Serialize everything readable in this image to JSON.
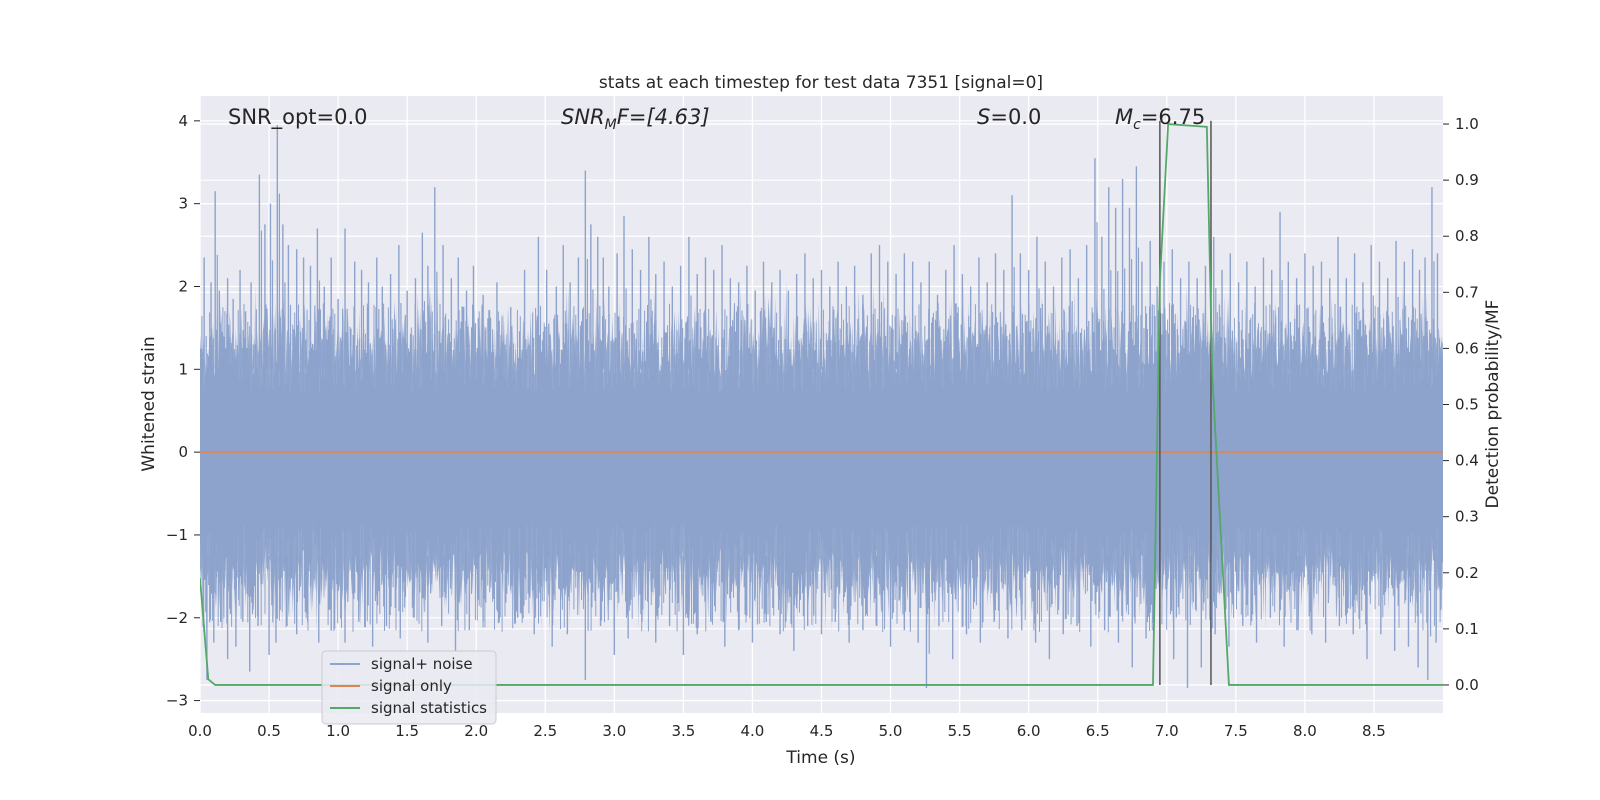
{
  "chart_data": {
    "type": "line",
    "title": "stats at each timestep for test data 7351 [signal=0]",
    "xlabel": "Time (s)",
    "ylabel": "Whitened strain",
    "y2label": "Detection probability/MF",
    "xlim": [
      0.0,
      9.0
    ],
    "ylim": [
      -3.15,
      4.3
    ],
    "y2lim": [
      -0.05,
      1.05
    ],
    "xticks": [
      "0.0",
      "0.5",
      "1.0",
      "1.5",
      "2.0",
      "2.5",
      "3.0",
      "3.5",
      "4.0",
      "4.5",
      "5.0",
      "5.5",
      "6.0",
      "6.5",
      "7.0",
      "7.5",
      "8.0",
      "8.5"
    ],
    "yticks": [
      "−3",
      "−2",
      "−1",
      "0",
      "1",
      "2",
      "3",
      "4"
    ],
    "y2ticks": [
      "0.0",
      "0.1",
      "0.2",
      "0.3",
      "0.4",
      "0.5",
      "0.6",
      "0.7",
      "0.8",
      "0.9",
      "1.0"
    ],
    "grid": true,
    "legend_position": "lower-left",
    "annotations": {
      "snr_opt": "SNR_opt=0.0",
      "snr_mf_main": "SNR",
      "snr_mf_sub": "M",
      "snr_mf_rest": "F=[4.63]",
      "s_italic": "S",
      "s_rest": "=0.0",
      "mc_main": "M",
      "mc_sub": "c",
      "mc_rest": "=6.75"
    },
    "series": [
      {
        "name": "signal+ noise",
        "color": "#8da3cc",
        "description_values": "whitened noise strain, approximately Gaussian",
        "envelope": {
          "typical_high": 1.2,
          "typical_low": -1.45,
          "max": 3.95,
          "min": -2.85
        },
        "spikes": [
          [
            0.03,
            2.35
          ],
          [
            0.08,
            2.05
          ],
          [
            0.11,
            3.15
          ],
          [
            0.14,
            1.95
          ],
          [
            0.2,
            2.1
          ],
          [
            0.24,
            1.85
          ],
          [
            0.29,
            2.2
          ],
          [
            0.33,
            1.7
          ],
          [
            0.37,
            2.05
          ],
          [
            0.43,
            3.35
          ],
          [
            0.47,
            2.75
          ],
          [
            0.51,
            3.0
          ],
          [
            0.56,
            3.95
          ],
          [
            0.6,
            2.75
          ],
          [
            0.64,
            2.5
          ],
          [
            0.7,
            2.45
          ],
          [
            0.75,
            2.35
          ],
          [
            0.8,
            2.25
          ],
          [
            0.85,
            2.7
          ],
          [
            0.9,
            2.0
          ],
          [
            0.95,
            2.35
          ],
          [
            1.0,
            1.85
          ],
          [
            1.05,
            2.7
          ],
          [
            1.12,
            2.3
          ],
          [
            1.17,
            2.2
          ],
          [
            1.22,
            2.05
          ],
          [
            1.28,
            2.35
          ],
          [
            1.32,
            2.0
          ],
          [
            1.38,
            2.15
          ],
          [
            1.44,
            2.5
          ],
          [
            1.5,
            1.95
          ],
          [
            1.56,
            2.1
          ],
          [
            1.61,
            2.65
          ],
          [
            1.65,
            2.25
          ],
          [
            1.7,
            3.2
          ],
          [
            1.76,
            2.5
          ],
          [
            1.82,
            2.1
          ],
          [
            1.87,
            2.35
          ],
          [
            1.93,
            1.95
          ],
          [
            1.98,
            2.25
          ],
          [
            2.05,
            1.9
          ],
          [
            2.15,
            2.05
          ],
          [
            2.25,
            1.75
          ],
          [
            2.35,
            2.2
          ],
          [
            2.45,
            2.6
          ],
          [
            2.51,
            2.2
          ],
          [
            2.58,
            2.0
          ],
          [
            2.63,
            2.5
          ],
          [
            2.68,
            2.05
          ],
          [
            2.74,
            2.35
          ],
          [
            2.79,
            3.4
          ],
          [
            2.83,
            2.75
          ],
          [
            2.88,
            2.6
          ],
          [
            2.92,
            2.35
          ],
          [
            2.96,
            2.0
          ],
          [
            3.02,
            2.4
          ],
          [
            3.07,
            2.85
          ],
          [
            3.13,
            2.45
          ],
          [
            3.19,
            2.2
          ],
          [
            3.25,
            2.6
          ],
          [
            3.3,
            2.15
          ],
          [
            3.36,
            2.3
          ],
          [
            3.42,
            2.0
          ],
          [
            3.48,
            2.25
          ],
          [
            3.54,
            2.6
          ],
          [
            3.6,
            2.15
          ],
          [
            3.66,
            2.35
          ],
          [
            3.72,
            2.2
          ],
          [
            3.78,
            2.5
          ],
          [
            3.84,
            2.1
          ],
          [
            3.9,
            2.05
          ],
          [
            3.96,
            2.25
          ],
          [
            4.02,
            1.95
          ],
          [
            4.08,
            2.3
          ],
          [
            4.14,
            2.05
          ],
          [
            4.2,
            2.2
          ],
          [
            4.26,
            1.95
          ],
          [
            4.32,
            2.15
          ],
          [
            4.38,
            2.4
          ],
          [
            4.44,
            2.1
          ],
          [
            4.5,
            2.2
          ],
          [
            4.56,
            2.0
          ],
          [
            4.62,
            2.3
          ],
          [
            4.68,
            2.0
          ],
          [
            4.74,
            2.25
          ],
          [
            4.8,
            1.9
          ],
          [
            4.86,
            2.4
          ],
          [
            4.92,
            2.5
          ],
          [
            4.98,
            2.3
          ],
          [
            5.04,
            2.15
          ],
          [
            5.1,
            2.4
          ],
          [
            5.16,
            2.3
          ],
          [
            5.22,
            2.05
          ],
          [
            5.28,
            2.3
          ],
          [
            5.34,
            1.9
          ],
          [
            5.4,
            2.2
          ],
          [
            5.46,
            2.5
          ],
          [
            5.52,
            2.15
          ],
          [
            5.58,
            2.0
          ],
          [
            5.64,
            2.35
          ],
          [
            5.7,
            2.05
          ],
          [
            5.76,
            2.4
          ],
          [
            5.82,
            2.2
          ],
          [
            5.88,
            3.1
          ],
          [
            5.94,
            2.4
          ],
          [
            6.0,
            2.2
          ],
          [
            6.06,
            2.6
          ],
          [
            6.12,
            2.3
          ],
          [
            6.18,
            2.0
          ],
          [
            6.24,
            2.35
          ],
          [
            6.3,
            2.45
          ],
          [
            6.36,
            2.1
          ],
          [
            6.42,
            2.5
          ],
          [
            6.48,
            3.55
          ],
          [
            6.53,
            2.6
          ],
          [
            6.58,
            3.2
          ],
          [
            6.63,
            2.95
          ],
          [
            6.68,
            3.3
          ],
          [
            6.73,
            2.95
          ],
          [
            6.78,
            3.45
          ],
          [
            6.82,
            2.3
          ],
          [
            6.88,
            2.55
          ],
          [
            6.93,
            2.0
          ],
          [
            6.98,
            2.3
          ],
          [
            7.04,
            2.45
          ],
          [
            7.1,
            2.1
          ],
          [
            7.16,
            2.3
          ],
          [
            7.22,
            2.1
          ],
          [
            7.28,
            2.25
          ],
          [
            7.34,
            2.6
          ],
          [
            7.4,
            2.2
          ],
          [
            7.46,
            2.4
          ],
          [
            7.52,
            2.05
          ],
          [
            7.58,
            2.3
          ],
          [
            7.64,
            2.0
          ],
          [
            7.7,
            2.35
          ],
          [
            7.76,
            2.2
          ],
          [
            7.82,
            2.9
          ],
          [
            7.88,
            2.3
          ],
          [
            7.94,
            2.1
          ],
          [
            8.0,
            2.4
          ],
          [
            8.06,
            2.25
          ],
          [
            8.12,
            2.3
          ],
          [
            8.18,
            2.1
          ],
          [
            8.24,
            2.6
          ],
          [
            8.3,
            2.1
          ],
          [
            8.36,
            2.4
          ],
          [
            8.42,
            2.05
          ],
          [
            8.48,
            2.5
          ],
          [
            8.54,
            2.3
          ],
          [
            8.6,
            2.1
          ],
          [
            8.66,
            2.55
          ],
          [
            8.72,
            2.3
          ],
          [
            8.78,
            2.45
          ],
          [
            8.83,
            2.2
          ],
          [
            8.87,
            2.35
          ],
          [
            8.92,
            3.2
          ],
          [
            8.96,
            2.4
          ]
        ],
        "dips": [
          [
            0.05,
            -2.75
          ],
          [
            0.1,
            -2.3
          ],
          [
            0.15,
            -2.05
          ],
          [
            0.2,
            -2.5
          ],
          [
            0.26,
            -2.35
          ],
          [
            0.31,
            -2.05
          ],
          [
            0.36,
            -2.65
          ],
          [
            0.42,
            -2.1
          ],
          [
            0.5,
            -2.45
          ],
          [
            0.55,
            -2.3
          ],
          [
            0.63,
            -2.1
          ],
          [
            0.7,
            -2.2
          ],
          [
            0.78,
            -2.05
          ],
          [
            0.86,
            -2.3
          ],
          [
            0.95,
            -2.15
          ],
          [
            1.05,
            -2.3
          ],
          [
            1.15,
            -2.05
          ],
          [
            1.25,
            -2.35
          ],
          [
            1.35,
            -2.1
          ],
          [
            1.45,
            -2.25
          ],
          [
            1.55,
            -2.0
          ],
          [
            1.65,
            -2.3
          ],
          [
            1.75,
            -2.1
          ],
          [
            1.85,
            -2.4
          ],
          [
            1.95,
            -2.15
          ],
          [
            2.05,
            -2.05
          ],
          [
            2.15,
            -1.9
          ],
          [
            2.3,
            -2.0
          ],
          [
            2.42,
            -2.2
          ],
          [
            2.55,
            -2.35
          ],
          [
            2.66,
            -2.2
          ],
          [
            2.79,
            -2.75
          ],
          [
            2.9,
            -2.1
          ],
          [
            3.0,
            -2.45
          ],
          [
            3.1,
            -2.25
          ],
          [
            3.2,
            -2.05
          ],
          [
            3.3,
            -2.3
          ],
          [
            3.4,
            -2.1
          ],
          [
            3.5,
            -2.45
          ],
          [
            3.6,
            -2.2
          ],
          [
            3.7,
            -2.05
          ],
          [
            3.8,
            -2.35
          ],
          [
            3.9,
            -2.15
          ],
          [
            4.0,
            -2.3
          ],
          [
            4.1,
            -2.05
          ],
          [
            4.2,
            -2.2
          ],
          [
            4.3,
            -2.4
          ],
          [
            4.4,
            -2.1
          ],
          [
            4.5,
            -2.2
          ],
          [
            4.6,
            -2.05
          ],
          [
            4.7,
            -2.3
          ],
          [
            4.8,
            -2.15
          ],
          [
            4.9,
            -2.1
          ],
          [
            5.0,
            -2.35
          ],
          [
            5.1,
            -2.15
          ],
          [
            5.2,
            -2.3
          ],
          [
            5.26,
            -2.85
          ],
          [
            5.35,
            -2.1
          ],
          [
            5.45,
            -2.5
          ],
          [
            5.55,
            -2.2
          ],
          [
            5.65,
            -2.3
          ],
          [
            5.75,
            -2.05
          ],
          [
            5.85,
            -2.25
          ],
          [
            5.95,
            -2.15
          ],
          [
            6.05,
            -2.3
          ],
          [
            6.15,
            -2.5
          ],
          [
            6.25,
            -2.2
          ],
          [
            6.35,
            -2.1
          ],
          [
            6.45,
            -2.35
          ],
          [
            6.55,
            -2.15
          ],
          [
            6.65,
            -2.3
          ],
          [
            6.75,
            -2.6
          ],
          [
            6.85,
            -2.25
          ],
          [
            6.95,
            -2.1
          ],
          [
            7.05,
            -2.5
          ],
          [
            7.15,
            -2.85
          ],
          [
            7.25,
            -2.6
          ],
          [
            7.35,
            -2.2
          ],
          [
            7.45,
            -2.35
          ],
          [
            7.55,
            -2.1
          ],
          [
            7.65,
            -2.3
          ],
          [
            7.75,
            -2.0
          ],
          [
            7.85,
            -2.35
          ],
          [
            7.95,
            -2.15
          ],
          [
            8.05,
            -2.2
          ],
          [
            8.15,
            -2.3
          ],
          [
            8.25,
            -2.1
          ],
          [
            8.35,
            -2.2
          ],
          [
            8.45,
            -2.5
          ],
          [
            8.55,
            -2.2
          ],
          [
            8.65,
            -2.4
          ],
          [
            8.75,
            -2.35
          ],
          [
            8.82,
            -2.6
          ],
          [
            8.89,
            -2.75
          ],
          [
            8.95,
            -2.3
          ]
        ]
      },
      {
        "name": "signal only",
        "color": "#dd8452",
        "x": [
          0.0,
          9.0
        ],
        "y": [
          0.0,
          0.0
        ]
      },
      {
        "name": "signal statistics",
        "color": "#55a868",
        "axis": "right",
        "x": [
          0.0,
          0.06,
          0.11,
          6.9,
          6.95,
          7.01,
          7.29,
          7.33,
          7.45,
          9.0
        ],
        "y": [
          0.19,
          0.01,
          0.0,
          0.0,
          0.72,
          1.0,
          0.995,
          0.55,
          0.0,
          0.0
        ]
      }
    ],
    "vertical_markers": [
      6.95,
      7.32
    ],
    "vertical_marker_color": "#555555"
  }
}
